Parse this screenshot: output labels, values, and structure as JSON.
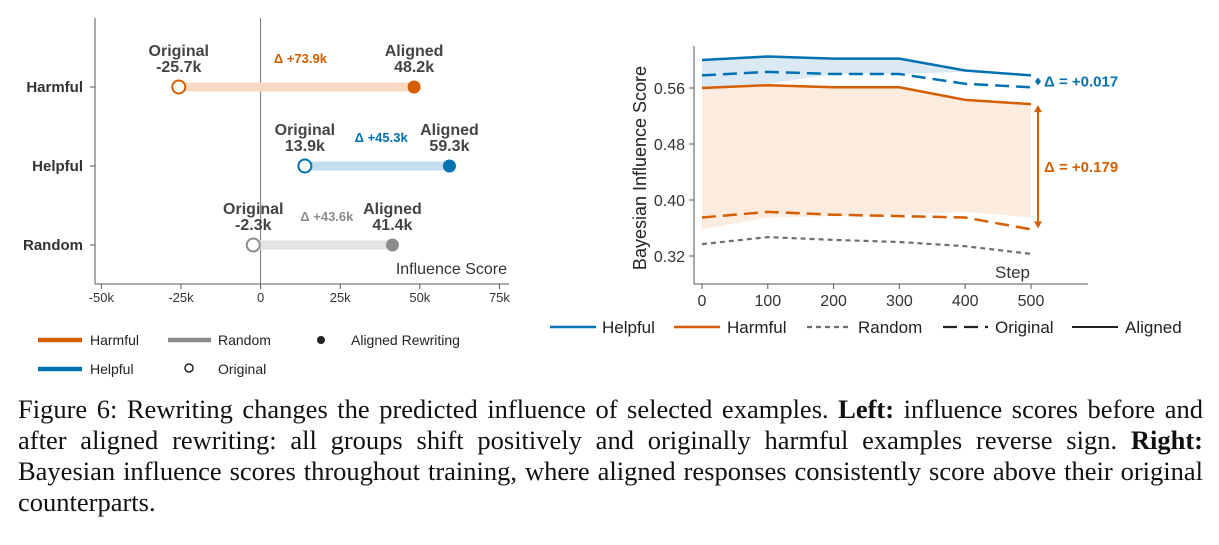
{
  "chart_data": [
    {
      "type": "dumbbell",
      "xlabel": "Influence Score",
      "xlim": [
        -52000,
        78000
      ],
      "xticks": [
        -50000,
        -25000,
        0,
        25000,
        50000,
        75000
      ],
      "xtick_labels": [
        "-50k",
        "-25k",
        "0",
        "25k",
        "50k",
        "75k"
      ],
      "categories": [
        "Harmful",
        "Helpful",
        "Random"
      ],
      "rows": [
        {
          "name": "Harmful",
          "original": -25700,
          "aligned": 48200,
          "original_label": "-25.7k",
          "aligned_label": "48.2k",
          "delta_label": "Δ +73.9k",
          "color": "#d55e00",
          "light": "#f7d9c4"
        },
        {
          "name": "Helpful",
          "original": 13900,
          "aligned": 59300,
          "original_label": "13.9k",
          "aligned_label": "59.3k",
          "delta_label": "Δ +45.3k",
          "color": "#0072b2",
          "light": "#c5deef"
        },
        {
          "name": "Random",
          "original": -2300,
          "aligned": 41400,
          "original_label": "-2.3k",
          "aligned_label": "41.4k",
          "delta_label": "Δ +43.6k",
          "color": "#8c8c8c",
          "light": "#e3e3e3"
        }
      ],
      "point_labels": {
        "original": "Original",
        "aligned": "Aligned"
      },
      "legend": [
        "Harmful",
        "Random",
        "Aligned Rewriting",
        "Helpful",
        "Original"
      ]
    },
    {
      "type": "line",
      "ylabel": "Bayesian Influence Score",
      "xlabel": "Step",
      "x": [
        0,
        100,
        200,
        300,
        400,
        500
      ],
      "xticks": [
        0,
        100,
        200,
        300,
        400,
        500
      ],
      "xtick_labels": [
        "0",
        "100",
        "200",
        "300",
        "400",
        "500"
      ],
      "ylim": [
        0.28,
        0.62
      ],
      "yticks": [
        0.32,
        0.4,
        0.48,
        0.56
      ],
      "ytick_labels": [
        "0.32",
        "0.40",
        "0.48",
        "0.56"
      ],
      "series": [
        {
          "name": "Helpful",
          "group": "Helpful",
          "variant": "Aligned",
          "values": [
            0.6,
            0.605,
            0.602,
            0.602,
            0.585,
            0.578
          ],
          "color": "#0072b2"
        },
        {
          "name": "Helpful",
          "group": "Helpful",
          "variant": "Original",
          "values": [
            0.578,
            0.583,
            0.58,
            0.58,
            0.566,
            0.561
          ],
          "color": "#0072b2"
        },
        {
          "name": "Harmful",
          "group": "Harmful",
          "variant": "Aligned",
          "values": [
            0.56,
            0.564,
            0.561,
            0.561,
            0.543,
            0.537
          ],
          "color": "#d55e00"
        },
        {
          "name": "Harmful",
          "group": "Harmful",
          "variant": "Original",
          "values": [
            0.375,
            0.383,
            0.379,
            0.377,
            0.375,
            0.358
          ],
          "color": "#d55e00"
        },
        {
          "name": "Random",
          "group": "Random",
          "variant": "Random",
          "values": [
            0.337,
            0.347,
            0.343,
            0.34,
            0.334,
            0.323
          ],
          "color": "#6e6e6e"
        }
      ],
      "annotations": [
        {
          "text": "Δ = +0.017",
          "color": "#0072b2"
        },
        {
          "text": "Δ = +0.179",
          "color": "#d55e00"
        }
      ],
      "legend": [
        "Helpful",
        "Harmful",
        "Random",
        "Original",
        "Aligned"
      ]
    }
  ],
  "caption": {
    "fig_label": "Figure 6:",
    "text1": " Rewriting changes the predicted influence of selected examples. ",
    "left_label": "Left:",
    "text2": " influence scores before and after aligned rewriting: all groups shift positively and originally harmful examples reverse sign. ",
    "right_label": "Right:",
    "text3": " Bayesian influence scores throughout training, where aligned responses consistently score above their original counterparts."
  }
}
